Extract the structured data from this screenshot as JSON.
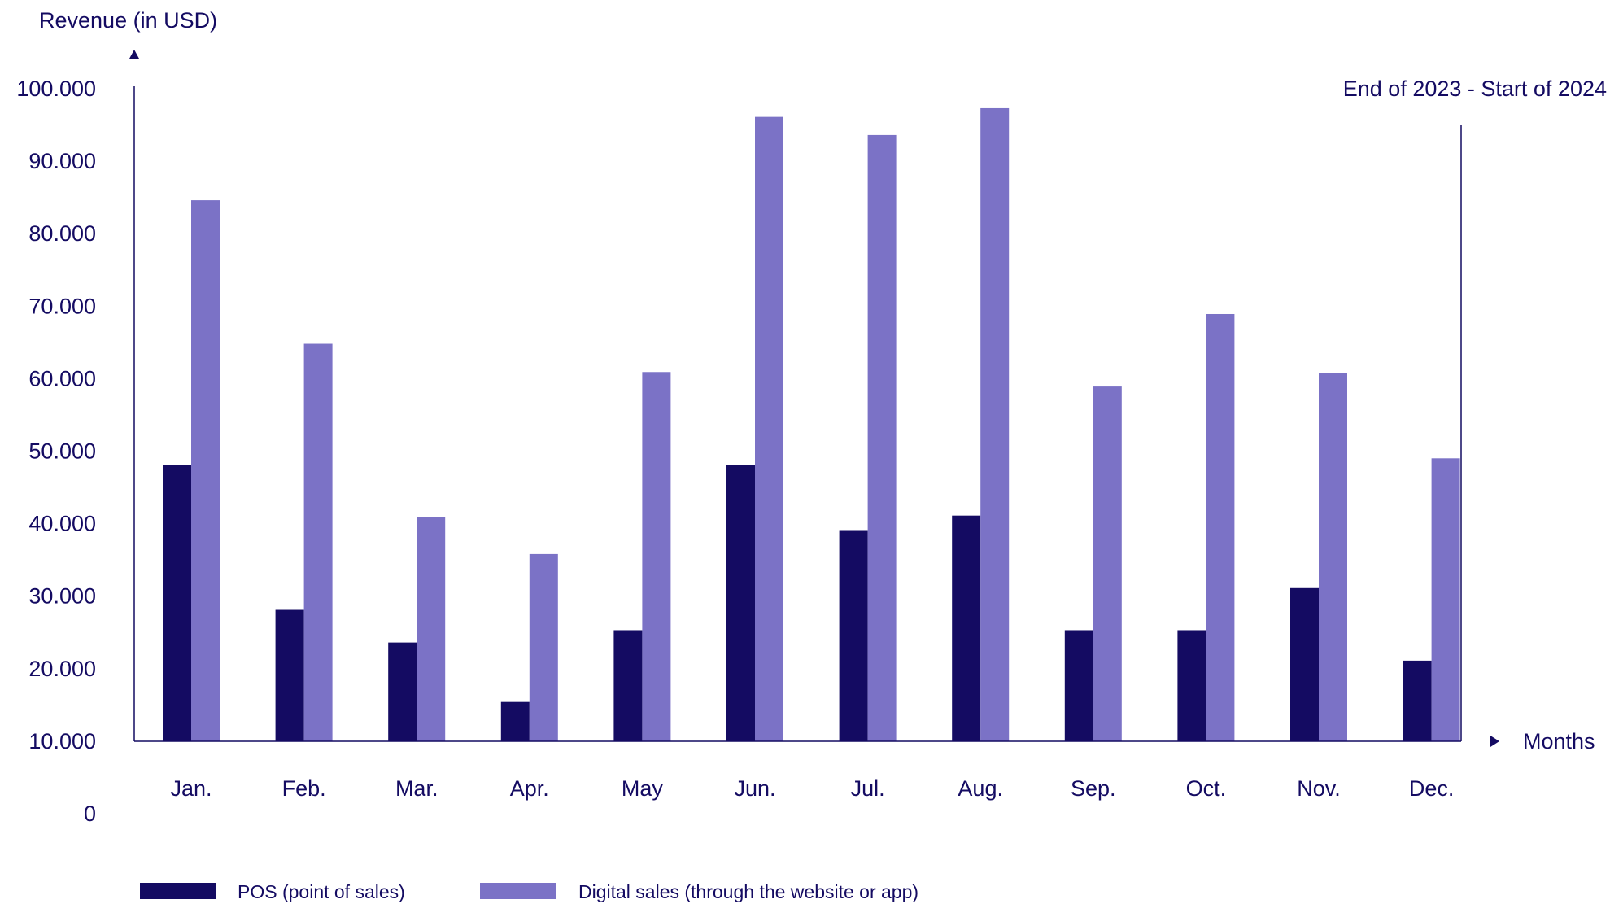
{
  "chart_data": {
    "type": "bar",
    "title": "",
    "subtitle": "End of 2023 - Start of 2024",
    "ylabel": "Revenue (in USD)",
    "xlabel": "Months",
    "ylim": [
      0,
      100000
    ],
    "y_ticks": [
      {
        "value": 0,
        "label": "0"
      },
      {
        "value": 10000,
        "label": "10.000"
      },
      {
        "value": 20000,
        "label": "20.000"
      },
      {
        "value": 30000,
        "label": "30.000"
      },
      {
        "value": 40000,
        "label": "40.000"
      },
      {
        "value": 50000,
        "label": "50.000"
      },
      {
        "value": 60000,
        "label": "60.000"
      },
      {
        "value": 70000,
        "label": "70.000"
      },
      {
        "value": 80000,
        "label": "80.000"
      },
      {
        "value": 90000,
        "label": "90.000"
      },
      {
        "value": 100000,
        "label": "100.000"
      }
    ],
    "categories": [
      "Jan.",
      "Feb.",
      "Mar.",
      "Apr.",
      "May",
      "Jun.",
      "Jul.",
      "Aug.",
      "Sep.",
      "Oct.",
      "Nov.",
      "Dec."
    ],
    "series": [
      {
        "name": "POS (point of sales)",
        "color": "#140b62",
        "values": [
          48000,
          28000,
          23500,
          15300,
          25200,
          48000,
          39000,
          41000,
          25200,
          25200,
          31000,
          21000
        ]
      },
      {
        "name": "Digital sales (through the website or app)",
        "color": "#7b72c6",
        "values": [
          84500,
          64700,
          40800,
          35700,
          60800,
          96000,
          93500,
          97200,
          58800,
          68800,
          60700,
          48900
        ]
      }
    ],
    "grid": false,
    "legend_position": "bottom-left",
    "text_color": "#140b62"
  }
}
